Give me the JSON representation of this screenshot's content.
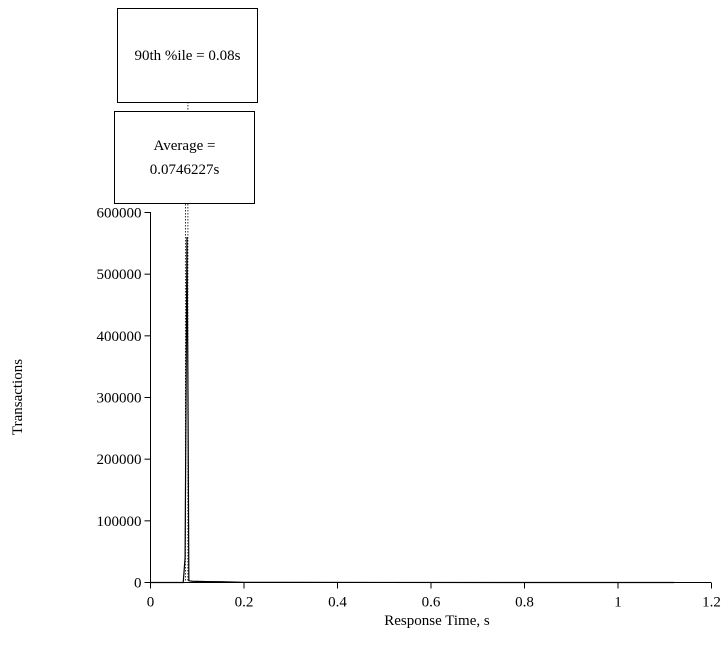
{
  "chart_data": {
    "type": "line",
    "title": "",
    "xlabel": "Response Time, s",
    "ylabel": "Transactions",
    "xlim": [
      0,
      1.2
    ],
    "ylim": [
      0,
      600000
    ],
    "xticks": [
      0,
      0.2,
      0.4,
      0.6,
      0.8,
      1,
      1.2
    ],
    "xtick_labels": [
      "0",
      "0.2",
      "0.4",
      "0.6",
      "0.8",
      "1",
      "1.2"
    ],
    "yticks": [
      0,
      100000,
      200000,
      300000,
      400000,
      500000,
      600000
    ],
    "ytick_labels": [
      "0",
      "100000",
      "200000",
      "300000",
      "400000",
      "500000",
      "600000"
    ],
    "grid": false,
    "series": [
      {
        "name": "",
        "x": [
          0.0,
          0.07,
          0.074,
          0.078,
          0.08,
          0.082,
          0.085,
          0.09,
          0.1,
          0.12,
          0.15,
          0.17,
          0.2,
          0.3,
          0.5,
          0.8,
          1.0,
          1.12
        ],
        "values": [
          0,
          0,
          40000,
          560000,
          330000,
          3000,
          2500,
          2000,
          1800,
          1500,
          1200,
          800,
          300,
          150,
          80,
          40,
          20,
          0
        ]
      }
    ],
    "markers": [
      {
        "label_line1": "90th %ile = 0.08s",
        "label_line2": "",
        "value": 0.08
      },
      {
        "label_line1": "Average =",
        "label_line2": "0.0746227s",
        "value": 0.0746227
      }
    ]
  }
}
